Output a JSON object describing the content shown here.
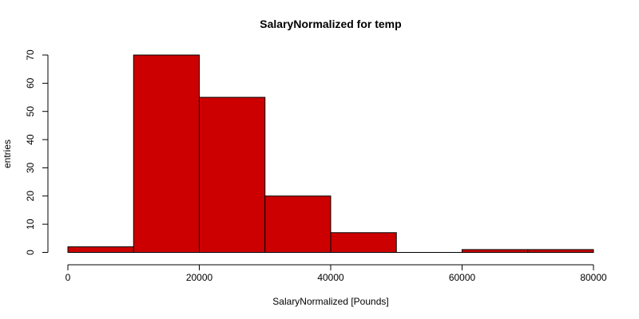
{
  "chart_data": {
    "type": "bar",
    "title": "SalaryNormalized for temp",
    "xlabel": "SalaryNormalized [Pounds]",
    "ylabel": "entries",
    "bins": [
      {
        "x0": 0,
        "x1": 10000,
        "count": 2
      },
      {
        "x0": 10000,
        "x1": 20000,
        "count": 70
      },
      {
        "x0": 20000,
        "x1": 30000,
        "count": 55
      },
      {
        "x0": 30000,
        "x1": 40000,
        "count": 20
      },
      {
        "x0": 40000,
        "x1": 50000,
        "count": 7
      },
      {
        "x0": 50000,
        "x1": 60000,
        "count": 0
      },
      {
        "x0": 60000,
        "x1": 70000,
        "count": 1
      },
      {
        "x0": 70000,
        "x1": 80000,
        "count": 1
      }
    ],
    "xlim": [
      0,
      80000
    ],
    "ylim": [
      0,
      70
    ],
    "xticks": [
      "0",
      "20000",
      "40000",
      "60000",
      "80000"
    ],
    "yticks": [
      "0",
      "10",
      "20",
      "30",
      "40",
      "50",
      "60",
      "70"
    ],
    "bar_color": "#cc0000",
    "grid": false
  }
}
